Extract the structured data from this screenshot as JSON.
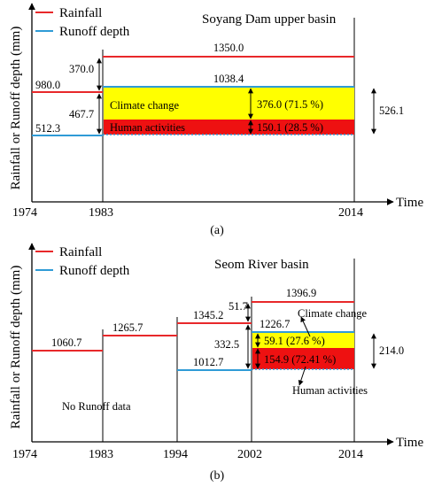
{
  "panel_a": {
    "title": "Soyang Dam upper basin",
    "caption": "(a)",
    "legend": {
      "rainfall": "Rainfall",
      "runoff": "Runoff depth"
    },
    "y_axis_label": "Rainfall or Runoff depth (mm)",
    "x_axis_label": "Time",
    "ticks": [
      "1974",
      "1983",
      "2014"
    ],
    "values": {
      "rain_1": "980.0",
      "rain_2": "1350.0",
      "runoff_1": "512.3",
      "runoff_2": "1038.4",
      "rain_diff": "370.0",
      "gap_1": "467.7",
      "runoff_diff": "526.1"
    },
    "climate_label": "Climate change",
    "climate_value": "376.0 (71.5 %)",
    "human_label": "Human activities",
    "human_value": "150.1 (28.5 %)",
    "colors": {
      "rainfall": "#e8282a",
      "runoff": "#2f9bd6",
      "climate": "#ffff00",
      "human": "#ee1111"
    }
  },
  "panel_b": {
    "title": "Seom River basin",
    "caption": "(b)",
    "legend": {
      "rainfall": "Rainfall",
      "runoff": "Runoff depth"
    },
    "y_axis_label": "Rainfall or Runoff depth (mm)",
    "x_axis_label": "Time",
    "ticks": [
      "1974",
      "1983",
      "1994",
      "2002",
      "2014"
    ],
    "values": {
      "rain_1": "1060.7",
      "rain_2": "1265.7",
      "rain_3": "1345.2",
      "rain_4": "1396.9",
      "runoff_3": "1012.7",
      "runoff_4": "1226.7",
      "rain_diff": "51.7",
      "gap_3": "332.5",
      "runoff_diff": "214.0"
    },
    "no_runoff": "No Runoff data",
    "climate_label": "Climate change",
    "climate_value": "59.1 (27.6 %)",
    "human_label": "Human activities",
    "human_value": "154.9 (72.41 %)"
  }
}
